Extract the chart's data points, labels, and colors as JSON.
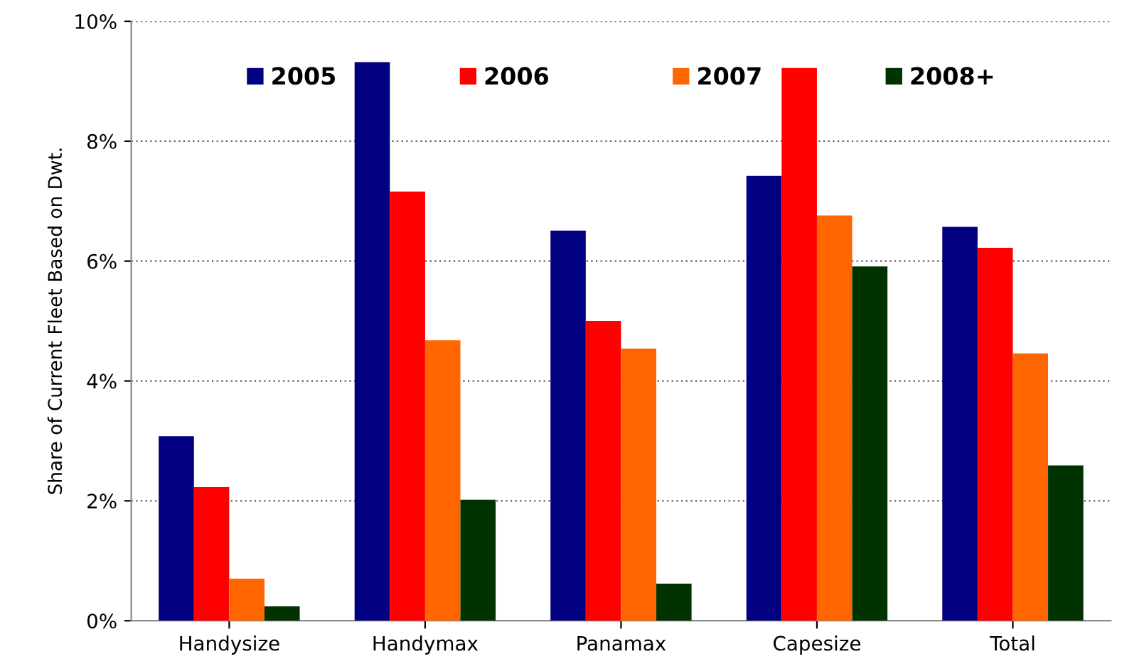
{
  "chart_data": {
    "type": "bar",
    "ylabel": "Share of Current Fleet Based on Dwt.",
    "categories": [
      "Handysize",
      "Handymax",
      "Panamax",
      "Capesize",
      "Total"
    ],
    "series": [
      {
        "name": "2005",
        "color": "#000080",
        "values": [
          3.08,
          9.32,
          6.51,
          7.42,
          6.57
        ]
      },
      {
        "name": "2006",
        "color": "#ff0000",
        "values": [
          2.23,
          7.16,
          5.0,
          9.22,
          6.22
        ]
      },
      {
        "name": "2007",
        "color": "#ff6600",
        "values": [
          0.7,
          4.68,
          4.54,
          6.76,
          4.46
        ]
      },
      {
        "name": "2008+",
        "color": "#003300",
        "values": [
          0.24,
          2.02,
          0.62,
          5.91,
          2.59
        ]
      }
    ],
    "ylim": [
      0,
      10
    ],
    "yticks": [
      {
        "value": 0,
        "label": "0%"
      },
      {
        "value": 2,
        "label": "2%"
      },
      {
        "value": 4,
        "label": "4%"
      },
      {
        "value": 6,
        "label": "6%"
      },
      {
        "value": 8,
        "label": "8%"
      },
      {
        "value": 10,
        "label": "10%"
      }
    ],
    "grid": "y",
    "legend": "top"
  }
}
